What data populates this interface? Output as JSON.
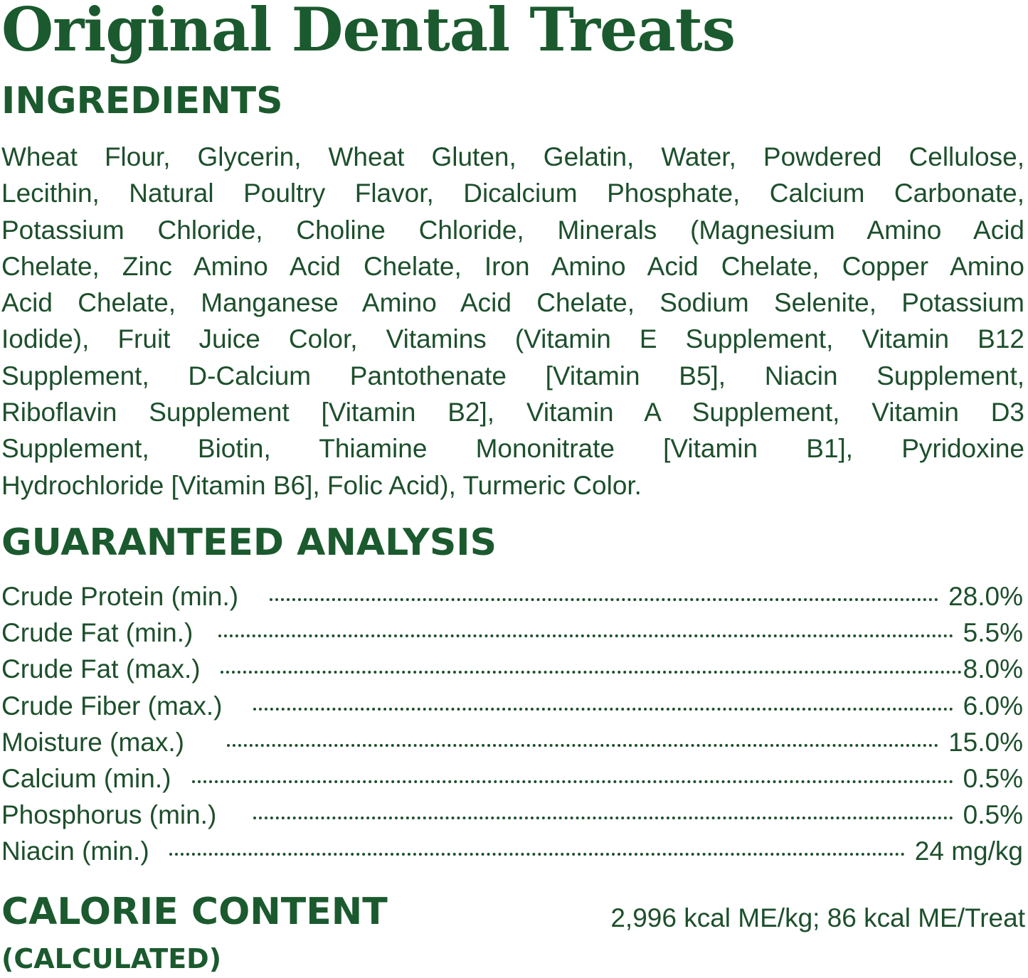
{
  "title": "Original Dental Treats",
  "ingredients": {
    "heading": "INGREDIENTS",
    "lines": [
      "Wheat Flour, Glycerin, Wheat Gluten, Gelatin, Water, Powdered Cellulose,",
      "Lecithin, Natural Poultry Flavor, Dicalcium Phosphate, Calcium Carbonate,",
      "Potassium Chloride, Choline Chloride, Minerals (Magnesium Amino Acid",
      "Chelate, Zinc Amino Acid Chelate, Iron Amino Acid Chelate, Copper Amino",
      "Acid Chelate, Manganese Amino Acid Chelate, Sodium Selenite, Potassium",
      "Iodide), Fruit Juice Color, Vitamins (Vitamin E Supplement, Vitamin B12",
      "Supplement, D-Calcium Pantothenate [Vitamin B5], Niacin Supplement,",
      "Riboflavin Supplement [Vitamin B2], Vitamin A Supplement, Vitamin D3",
      "Supplement, Biotin, Thiamine Mononitrate [Vitamin B1], Pyridoxine",
      "Hydrochloride [Vitamin B6], Folic Acid), Turmeric Color."
    ]
  },
  "analysis": {
    "heading": "GUARANTEED ANALYSIS",
    "rows": [
      {
        "label": "Crude Protein (min.)",
        "value": "28.0%"
      },
      {
        "label": "Crude Fat (min.)",
        "value": "5.5%"
      },
      {
        "label": "Crude Fat (max.)",
        "value": "8.0%"
      },
      {
        "label": "Crude Fiber (max.)",
        "value": "6.0%"
      },
      {
        "label": "Moisture (max.)",
        "value": "15.0%"
      },
      {
        "label": "Calcium (min.)",
        "value": "0.5%"
      },
      {
        "label": "Phosphorus (min.)",
        "value": "0.5%"
      },
      {
        "label": "Niacin (min.)",
        "value": "24 mg/kg"
      }
    ]
  },
  "calorie": {
    "heading": "CALORIE CONTENT",
    "subheading": "(CALCULATED)",
    "value": "2,996 kcal ME/kg; 86 kcal ME/Treat"
  },
  "colors": {
    "heading_green": "#1b5a2e",
    "text_green": "#1d4f2c",
    "background": "#ffffff"
  }
}
